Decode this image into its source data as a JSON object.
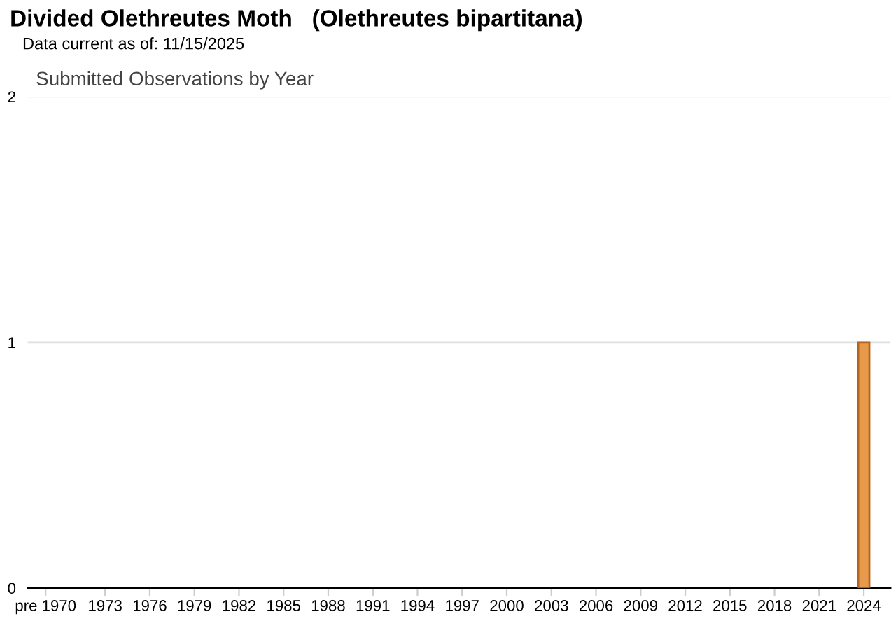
{
  "chart_data": {
    "type": "bar",
    "title": "Divided Olethreutes Moth   (Olethreutes bipartitana)",
    "subtitle": "Data current as of: 11/15/2025",
    "annotations": [
      "Submitted Observations by Year"
    ],
    "categories": [
      "pre 1970",
      null,
      null,
      null,
      "1973",
      null,
      null,
      "1976",
      null,
      null,
      "1979",
      null,
      null,
      "1982",
      null,
      null,
      "1985",
      null,
      null,
      "1988",
      null,
      null,
      "1991",
      null,
      null,
      "1994",
      null,
      null,
      "1997",
      null,
      null,
      "2000",
      null,
      null,
      "2003",
      null,
      null,
      "2006",
      null,
      null,
      "2009",
      null,
      null,
      "2012",
      null,
      null,
      "2015",
      null,
      null,
      "2018",
      null,
      null,
      "2021",
      null,
      null,
      "2024",
      null
    ],
    "values": [
      0,
      0,
      0,
      0,
      0,
      0,
      0,
      0,
      0,
      0,
      0,
      0,
      0,
      0,
      0,
      0,
      0,
      0,
      0,
      0,
      0,
      0,
      0,
      0,
      0,
      0,
      0,
      0,
      0,
      0,
      0,
      0,
      0,
      0,
      0,
      0,
      0,
      0,
      0,
      0,
      0,
      0,
      0,
      0,
      0,
      0,
      0,
      0,
      0,
      0,
      0,
      0,
      0,
      0,
      0,
      1,
      0
    ],
    "color": "#e89a4c",
    "ylim": [
      0,
      2
    ],
    "yticks": [
      0,
      1,
      2
    ],
    "grid": "y",
    "legend": false
  }
}
